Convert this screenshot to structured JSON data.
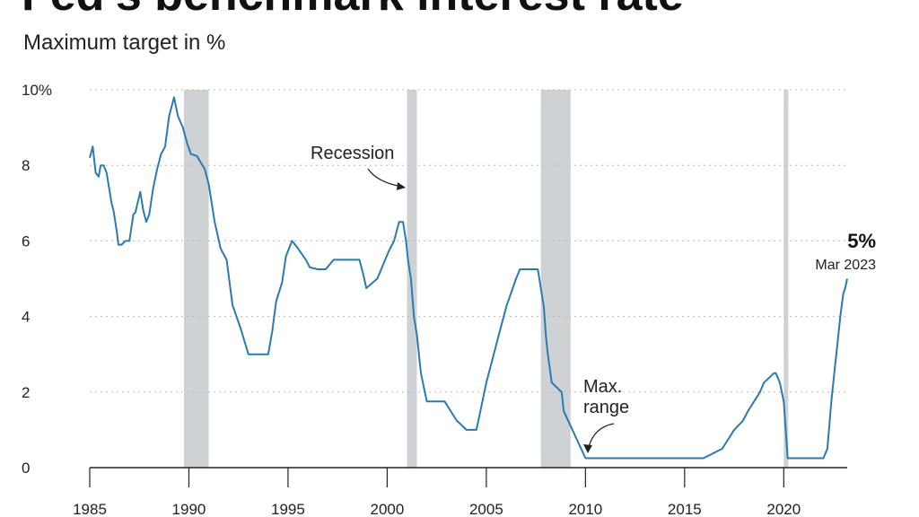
{
  "header": {
    "title": "Fed's benchmark interest rate",
    "subtitle": "Maximum target in %"
  },
  "chart_data": {
    "type": "line",
    "title": "Fed's benchmark interest rate",
    "subtitle": "Maximum target in %",
    "xlabel": "",
    "ylabel": "",
    "xlim": [
      1985,
      2023.2
    ],
    "ylim": [
      0,
      10
    ],
    "x_ticks": [
      1985,
      1990,
      1995,
      2000,
      2005,
      2010,
      2015,
      2020
    ],
    "x_tick_labels": [
      "1985",
      "1990",
      "1995",
      "2000",
      "2005",
      "2010",
      "2015",
      "2020"
    ],
    "y_ticks": [
      0,
      2,
      4,
      6,
      8,
      10
    ],
    "y_tick_labels": [
      "0",
      "2",
      "4",
      "6",
      "8",
      "10%"
    ],
    "grid": "horizontal dotted",
    "colors": {
      "line": "#2b7ab0",
      "recession": "#cfd2d4",
      "grid": "#bbbbbb",
      "axis": "#222222"
    },
    "recessions": [
      [
        1989.75,
        1991.0
      ],
      [
        2001.0,
        2001.5
      ],
      [
        2007.75,
        2009.25
      ],
      [
        2020.0,
        2020.2
      ]
    ],
    "series": [
      {
        "x": [
          1985.0,
          1985.15,
          1985.3,
          1985.45,
          1985.55,
          1985.7,
          1985.85,
          1986.1,
          1986.2,
          1986.35,
          1986.45,
          1986.6,
          1986.8,
          1987.0,
          1987.2,
          1987.3,
          1987.55,
          1987.7,
          1987.85,
          1988.0,
          1988.2,
          1988.4,
          1988.6,
          1988.8,
          1989.0,
          1989.25,
          1989.45,
          1989.7,
          1989.9,
          1990.1,
          1990.4,
          1990.8,
          1991.0,
          1991.3,
          1991.6,
          1991.9,
          1992.2,
          1992.6,
          1993.0,
          1993.5,
          1994.0,
          1994.2,
          1994.4,
          1994.7,
          1994.9,
          1995.2,
          1995.5,
          1995.9,
          1996.1,
          1996.5,
          1996.9,
          1997.3,
          1998.0,
          1998.6,
          1998.8,
          1998.95,
          1999.5,
          1999.7,
          1999.9,
          2000.1,
          2000.35,
          2000.6,
          2000.8,
          2000.95,
          2001.05,
          2001.2,
          2001.35,
          2001.5,
          2001.7,
          2001.9,
          2002.0,
          2002.9,
          2003.5,
          2004.0,
          2004.5,
          2004.7,
          2005.0,
          2005.5,
          2006.0,
          2006.5,
          2006.7,
          2007.6,
          2007.75,
          2007.9,
          2008.0,
          2008.1,
          2008.3,
          2008.8,
          2008.9,
          2010.0,
          2015.0,
          2015.95,
          2016.9,
          2017.2,
          2017.5,
          2017.95,
          2018.2,
          2018.5,
          2018.8,
          2019.0,
          2019.5,
          2019.6,
          2019.8,
          2020.0,
          2020.2,
          2021.0,
          2022.0,
          2022.2,
          2022.4,
          2022.55,
          2022.7,
          2022.85,
          2022.95,
          2023.0,
          2023.1,
          2023.2
        ],
        "y": [
          8.2,
          8.5,
          7.8,
          7.7,
          8.0,
          8.0,
          7.8,
          7.0,
          6.8,
          6.3,
          5.9,
          5.9,
          6.0,
          6.0,
          6.7,
          6.75,
          7.3,
          6.8,
          6.5,
          6.7,
          7.4,
          7.9,
          8.3,
          8.5,
          9.3,
          9.8,
          9.3,
          9.0,
          8.6,
          8.3,
          8.25,
          7.9,
          7.5,
          6.5,
          5.8,
          5.5,
          4.3,
          3.7,
          3.0,
          3.0,
          3.0,
          3.6,
          4.4,
          4.9,
          5.6,
          6.0,
          5.8,
          5.5,
          5.3,
          5.25,
          5.25,
          5.5,
          5.5,
          5.5,
          5.1,
          4.75,
          5.0,
          5.25,
          5.5,
          5.75,
          6.0,
          6.5,
          6.5,
          6.0,
          5.5,
          5.0,
          4.0,
          3.5,
          2.5,
          2.0,
          1.75,
          1.75,
          1.25,
          1.0,
          1.0,
          1.5,
          2.25,
          3.25,
          4.25,
          5.0,
          5.25,
          5.25,
          4.75,
          4.25,
          3.5,
          3.0,
          2.25,
          2.0,
          1.5,
          0.25,
          0.25,
          0.25,
          0.5,
          0.75,
          1.0,
          1.25,
          1.5,
          1.75,
          2.0,
          2.25,
          2.5,
          2.5,
          2.25,
          1.75,
          0.25,
          0.25,
          0.25,
          0.5,
          1.75,
          2.5,
          3.25,
          4.0,
          4.4,
          4.6,
          4.75,
          5.0
        ]
      }
    ],
    "annotations": {
      "recession_label": "Recession",
      "max_range_line1": "Max.",
      "max_range_line2": "range",
      "end_value": "5%",
      "end_date": "Mar 2023"
    }
  }
}
